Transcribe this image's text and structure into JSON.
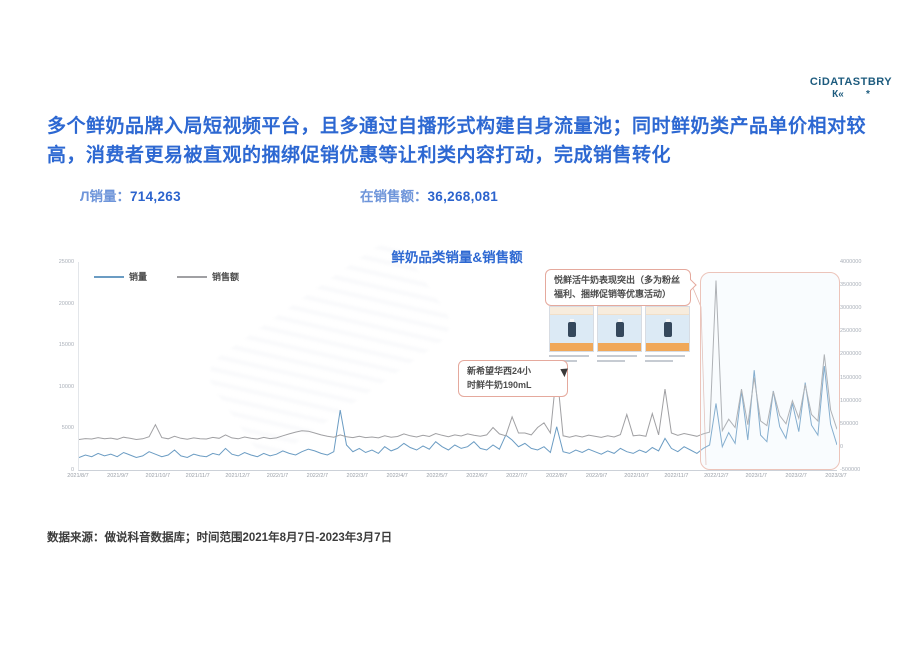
{
  "logo": {
    "line1": "CiDATASTBRY",
    "line2": "К«        *"
  },
  "headline": "多个鲜奶品牌入局短视频平台，且多通过自播形式构建自身流量池；同时鲜奶类产品单价相对较高，消费者更易被直观的捆绑促销优惠等让利类内容打动，完成销售转化",
  "stats": [
    {
      "label": "Л销量：",
      "value": "714,263"
    },
    {
      "label": "在销售额：",
      "value": "36,268,081"
    }
  ],
  "footer": "数据来源：做说科音数据库；时间范围2021年8月7日-2023年3月7日",
  "chart_data": {
    "type": "line",
    "title": "鲜奶品类销量&销售额",
    "legend": [
      "销量",
      "销售额"
    ],
    "x_labels": [
      "2021/8/7",
      "2021/9/7",
      "2021/10/7",
      "2021/11/7",
      "2021/12/7",
      "2022/1/7",
      "2022/2/7",
      "2022/3/7",
      "2022/4/7",
      "2022/5/7",
      "2022/6/7",
      "2022/7/7",
      "2022/8/7",
      "2022/9/7",
      "2022/10/7",
      "2022/11/7",
      "2022/12/7",
      "2023/1/7",
      "2023/2/7",
      "2023/3/7"
    ],
    "left_axis": {
      "label": "销量",
      "min": 0,
      "max": 25000,
      "ticks": [
        25000,
        20000,
        15000,
        10000,
        5000,
        0
      ]
    },
    "right_axis": {
      "label": "销售额",
      "min": -500000,
      "max": 4000000,
      "ticks": [
        4000000,
        3500000,
        3000000,
        2500000,
        2000000,
        1500000,
        1000000,
        500000,
        0,
        -500000
      ]
    },
    "annotations": [
      {
        "line1": "悦鲜活牛奶表现突出（多为粉丝",
        "line2": "福利、捆绑促销等优惠活动）"
      },
      {
        "line1": "新希望华西24小",
        "line2": "时鲜牛奶190mL"
      }
    ],
    "series": [
      {
        "name": "销量",
        "axis": "left",
        "color": "#6b9cc3",
        "values": [
          1500,
          1800,
          1600,
          2000,
          1700,
          1900,
          1600,
          2100,
          1800,
          1500,
          1700,
          2200,
          1900,
          1600,
          1800,
          2400,
          1700,
          1500,
          1900,
          1700,
          1600,
          2000,
          1800,
          2600,
          1900,
          1700,
          2100,
          1800,
          1600,
          2000,
          1700,
          1900,
          2300,
          2000,
          1800,
          2200,
          2500,
          2300,
          2000,
          1800,
          2200,
          7200,
          3000,
          2200,
          2600,
          2100,
          2400,
          2000,
          2800,
          2300,
          2600,
          3200,
          2700,
          2400,
          2900,
          2500,
          3400,
          2800,
          2400,
          3000,
          2600,
          2800,
          3400,
          2600,
          2400,
          3000,
          2500,
          4200,
          3600,
          2800,
          3200,
          2600,
          2400,
          2800,
          2100,
          5200,
          2200,
          2000,
          2400,
          2100,
          2500,
          2200,
          1900,
          2300,
          2000,
          2600,
          2200,
          2000,
          2400,
          2100,
          2700,
          2300,
          3800,
          2600,
          2200,
          2800,
          2400,
          2000,
          2600,
          3000,
          8000,
          2800,
          4500,
          3200,
          9500,
          3600,
          12000,
          4200,
          3400,
          9500,
          5200,
          3800,
          8000,
          4600,
          10500,
          5400,
          4200,
          12500,
          5500,
          3000
        ]
      },
      {
        "name": "销售额",
        "axis": "right",
        "color": "#a0a0a3",
        "values": [
          160000,
          180000,
          170000,
          200000,
          175000,
          190000,
          165000,
          210000,
          185000,
          160000,
          175000,
          220000,
          480000,
          200000,
          175000,
          230000,
          185000,
          165000,
          195000,
          175000,
          170000,
          205000,
          185000,
          260000,
          195000,
          175000,
          215000,
          185000,
          170000,
          205000,
          180000,
          195000,
          240000,
          280000,
          320000,
          350000,
          340000,
          300000,
          260000,
          230000,
          210000,
          260000,
          220000,
          200000,
          230000,
          200000,
          215000,
          195000,
          240000,
          210000,
          225000,
          280000,
          240000,
          215000,
          250000,
          225000,
          290000,
          250000,
          220000,
          260000,
          235000,
          280000,
          250000,
          230000,
          260000,
          420000,
          280000,
          240000,
          650000,
          300000,
          300000,
          260000,
          420000,
          520000,
          300000,
          1650000,
          240000,
          210000,
          245000,
          215000,
          255000,
          230000,
          205000,
          240000,
          215000,
          265000,
          700000,
          240000,
          255000,
          230000,
          720000,
          260000,
          1250000,
          300000,
          250000,
          290000,
          260000,
          230000,
          280000,
          320000,
          3600000,
          350000,
          600000,
          420000,
          1250000,
          480000,
          1500000,
          560000,
          460000,
          1200000,
          680000,
          500000,
          1000000,
          620000,
          1350000,
          700000,
          560000,
          2000000,
          800000,
          380000
        ]
      }
    ]
  }
}
